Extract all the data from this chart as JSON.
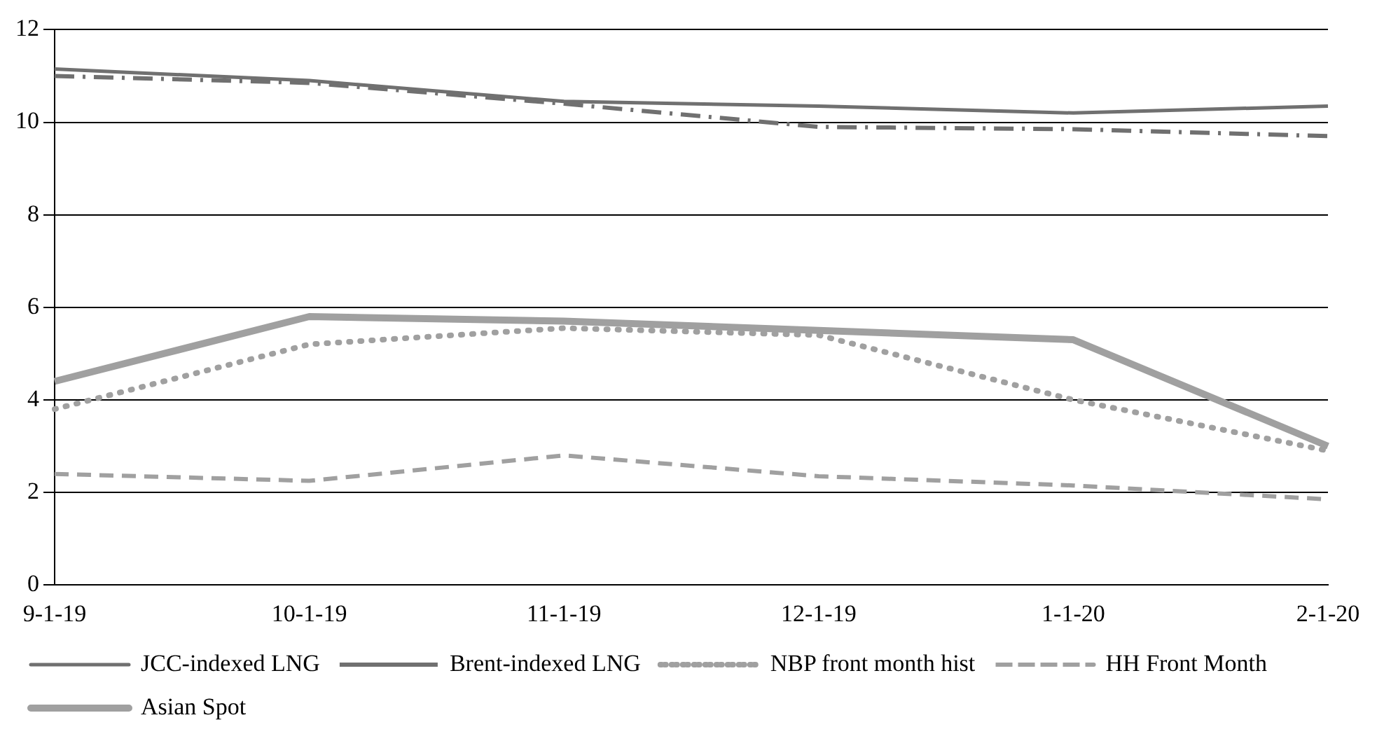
{
  "chart_data": {
    "type": "line",
    "categories": [
      "9-1-19",
      "10-1-19",
      "11-1-19",
      "12-1-19",
      "1-1-20",
      "2-1-20"
    ],
    "series": [
      {
        "name": "JCC-indexed LNG",
        "color": "#707070",
        "line_style": "solid",
        "values": [
          11.15,
          10.9,
          10.45,
          10.35,
          10.2,
          10.35
        ]
      },
      {
        "name": "Brent-indexed LNG",
        "color": "#707070",
        "line_style": "dashed",
        "values": [
          11.0,
          10.85,
          10.4,
          9.9,
          9.85,
          9.7
        ]
      },
      {
        "name": "NBP front month hist",
        "color": "#a0a0a0",
        "line_style": "dotted",
        "values": [
          3.8,
          5.2,
          5.55,
          5.4,
          4.0,
          2.9
        ]
      },
      {
        "name": "HH Front Month",
        "color": "#a0a0a0",
        "line_style": "dashed",
        "values": [
          2.4,
          2.25,
          2.8,
          2.35,
          2.15,
          1.85
        ]
      },
      {
        "name": "Asian Spot",
        "color": "#a0a0a0",
        "line_style": "solid",
        "values": [
          4.4,
          5.8,
          5.7,
          5.5,
          5.3,
          3.0
        ]
      }
    ],
    "ylim": [
      0,
      12
    ],
    "yticks": [
      0,
      2,
      4,
      6,
      8,
      10,
      12
    ],
    "grid": "y",
    "legend": "bottom",
    "marker": "none"
  }
}
